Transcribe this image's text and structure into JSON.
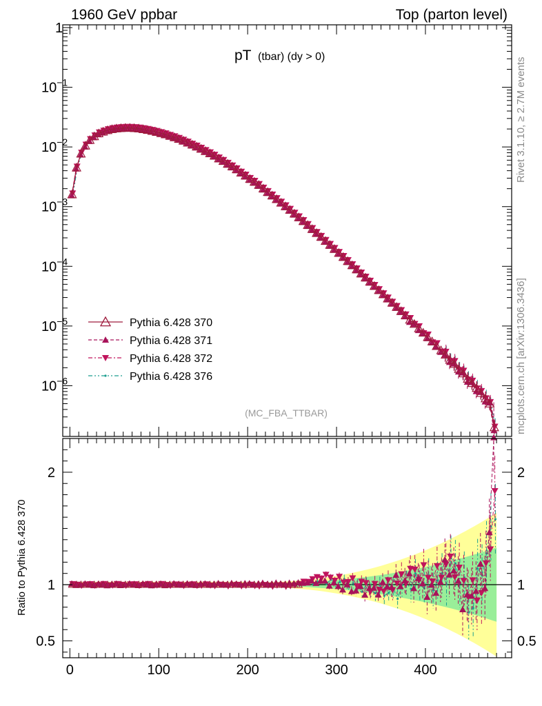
{
  "header": {
    "left": "1960 GeV ppbar",
    "right": "Top (parton level)"
  },
  "plot_title": {
    "main": "pT",
    "sub": "(tbar) (dy > 0)"
  },
  "side_labels": {
    "rivet": "Rivet 3.1.10, ≥ 2.7M events",
    "mcplots": "mcplots.cern.ch [arXiv:1306.3436]"
  },
  "analysis_label": "(MC_FBA_TTBAR)",
  "ratio_ylabel": "Ratio to Pythia 6.428 370",
  "colors": {
    "s370": "#9e1a3c",
    "s371": "#a8135a",
    "s372": "#c0145c",
    "s376": "#1a9e8f",
    "band_yellow": "#ffff99",
    "band_green": "#99ee99"
  },
  "chart_data": [
    {
      "type": "scatter",
      "ylog": true,
      "ylim": [
        1e-07,
        1
      ],
      "xlim": [
        -8,
        497
      ],
      "y_ticks": [
        "1",
        "10^-1",
        "10^-2",
        "10^-3",
        "10^-4",
        "10^-5",
        "10^-6"
      ],
      "series": [
        {
          "name": "Pythia 6.428 370",
          "marker": "triangle-up-open",
          "line": "solid"
        },
        {
          "name": "Pythia 6.428 371",
          "marker": "triangle-up",
          "line": "dashed"
        },
        {
          "name": "Pythia 6.428 372",
          "marker": "triangle-down",
          "line": "dashdot"
        },
        {
          "name": "Pythia 6.428 376",
          "marker": "dot",
          "line": "dashdotdot"
        }
      ],
      "curve_points": [
        [
          2.5,
          0.0016
        ],
        [
          7.5,
          0.0045
        ],
        [
          12.5,
          0.0077
        ],
        [
          17.5,
          0.0105
        ],
        [
          22.5,
          0.013
        ],
        [
          27.5,
          0.015
        ],
        [
          32.5,
          0.0168
        ],
        [
          37.5,
          0.018
        ],
        [
          42.5,
          0.019
        ],
        [
          47.5,
          0.0198
        ],
        [
          52.5,
          0.0203
        ],
        [
          57.5,
          0.0206
        ],
        [
          62.5,
          0.0208
        ],
        [
          67.5,
          0.0208
        ],
        [
          72.5,
          0.0206
        ],
        [
          77.5,
          0.0203
        ],
        [
          82.5,
          0.0198
        ],
        [
          87.5,
          0.0192
        ],
        [
          92.5,
          0.0185
        ],
        [
          97.5,
          0.0178
        ],
        [
          102.5,
          0.017
        ],
        [
          107.5,
          0.0162
        ],
        [
          112.5,
          0.0153
        ],
        [
          117.5,
          0.0145
        ],
        [
          122.5,
          0.0136
        ],
        [
          127.5,
          0.0127
        ],
        [
          132.5,
          0.0118
        ],
        [
          137.5,
          0.0109
        ],
        [
          142.5,
          0.0101
        ],
        [
          147.5,
          0.0093
        ],
        [
          152.5,
          0.0085
        ],
        [
          157.5,
          0.0078
        ],
        [
          162.5,
          0.0071
        ],
        [
          167.5,
          0.0064
        ],
        [
          172.5,
          0.0058
        ],
        [
          177.5,
          0.0052
        ],
        [
          182.5,
          0.0047
        ],
        [
          187.5,
          0.0042
        ],
        [
          192.5,
          0.0037
        ],
        [
          197.5,
          0.0033
        ],
        [
          202.5,
          0.0029
        ],
        [
          207.5,
          0.0026
        ],
        [
          212.5,
          0.0023
        ],
        [
          217.5,
          0.002
        ],
        [
          222.5,
          0.00175
        ],
        [
          227.5,
          0.00153
        ],
        [
          232.5,
          0.00133
        ],
        [
          237.5,
          0.00116
        ],
        [
          242.5,
          0.00101
        ],
        [
          247.5,
          0.00088
        ],
        [
          252.5,
          0.00076
        ],
        [
          257.5,
          0.00066
        ],
        [
          262.5,
          0.00057
        ],
        [
          267.5,
          0.00049
        ],
        [
          272.5,
          0.00042
        ],
        [
          277.5,
          0.00036
        ],
        [
          282.5,
          0.00031
        ],
        [
          287.5,
          0.000265
        ],
        [
          292.5,
          0.000228
        ],
        [
          297.5,
          0.000195
        ],
        [
          302.5,
          0.000167
        ],
        [
          307.5,
          0.000143
        ],
        [
          312.5,
          0.000122
        ],
        [
          317.5,
          0.000104
        ],
        [
          322.5,
          8.85e-05
        ],
        [
          327.5,
          7.55e-05
        ],
        [
          332.5,
          6.45e-05
        ],
        [
          337.5,
          5.5e-05
        ],
        [
          342.5,
          4.68e-05
        ],
        [
          347.5,
          3.98e-05
        ],
        [
          352.5,
          3.39e-05
        ],
        [
          357.5,
          2.88e-05
        ],
        [
          362.5,
          2.45e-05
        ],
        [
          367.5,
          2.08e-05
        ],
        [
          372.5,
          1.77e-05
        ],
        [
          377.5,
          1.5e-05
        ],
        [
          382.5,
          1.27e-05
        ],
        [
          387.5,
          1.08e-05
        ],
        [
          392.5,
          9.1e-06
        ],
        [
          397.5,
          7.7e-06
        ],
        [
          402.5,
          6.5e-06
        ],
        [
          407.5,
          5.5e-06
        ],
        [
          412.5,
          4.6e-06
        ],
        [
          417.5,
          3.9e-06
        ],
        [
          422.5,
          3.3e-06
        ],
        [
          427.5,
          2.7e-06
        ],
        [
          432.5,
          2.3e-06
        ],
        [
          437.5,
          1.9e-06
        ],
        [
          442.5,
          1.6e-06
        ],
        [
          447.5,
          1.3e-06
        ],
        [
          452.5,
          1.1e-06
        ],
        [
          457.5,
          9.1e-07
        ],
        [
          462.5,
          7.5e-07
        ],
        [
          467.5,
          6.1e-07
        ],
        [
          472.5,
          5e-07
        ],
        [
          477.5,
          2e-07
        ]
      ]
    },
    {
      "type": "scatter",
      "xlabel": "",
      "ylabel": "Ratio to Pythia 6.428 370",
      "ylim": [
        0.35,
        2.3
      ],
      "xlim": [
        -8,
        497
      ],
      "x_ticks": [
        0,
        100,
        200,
        300,
        400
      ],
      "y_ticks": [
        0.5,
        1,
        2
      ],
      "reference": 1.0,
      "ratio_points": [
        {
          "x": 102,
          "r371": 1.0,
          "r372": 1.0,
          "r376": 1.0
        },
        {
          "x": 250,
          "r371": 1.01,
          "r372": 0.99,
          "r376": 1.0
        },
        {
          "x": 285,
          "r371": 1.03,
          "r372": 1.08,
          "r376": 1.02
        },
        {
          "x": 305,
          "r371": 0.98,
          "r372": 1.04,
          "r376": 1.03
        },
        {
          "x": 325,
          "r371": 0.95,
          "r372": 1.02,
          "r376": 0.98
        },
        {
          "x": 345,
          "r371": 0.95,
          "r372": 0.96,
          "r376": 0.95
        },
        {
          "x": 365,
          "r371": 1.02,
          "r372": 1.0,
          "r376": 0.92
        },
        {
          "x": 385,
          "r371": 1.05,
          "r372": 1.12,
          "r376": 1.04
        },
        {
          "x": 400,
          "r371": 0.98,
          "r372": 1.1,
          "r376": 1.0
        },
        {
          "x": 410,
          "r371": 0.9,
          "r372": 1.06,
          "r376": 1.02
        },
        {
          "x": 420,
          "r371": 1.12,
          "r372": 1.16,
          "r376": 1.05
        },
        {
          "x": 430,
          "r371": 1.18,
          "r372": 1.2,
          "r376": 1.22
        },
        {
          "x": 440,
          "r371": 0.9,
          "r372": 1.05,
          "r376": 1.05
        },
        {
          "x": 450,
          "r371": 0.82,
          "r372": 0.95,
          "r376": 0.72
        },
        {
          "x": 460,
          "r371": 1.1,
          "r372": 0.9,
          "r376": 1.15
        },
        {
          "x": 470,
          "r371": 1.0,
          "r372": 1.15,
          "r376": 1.28
        },
        {
          "x": 476,
          "r371": 2.2,
          "r372": 1.8,
          "r376": 1.7
        }
      ]
    }
  ]
}
